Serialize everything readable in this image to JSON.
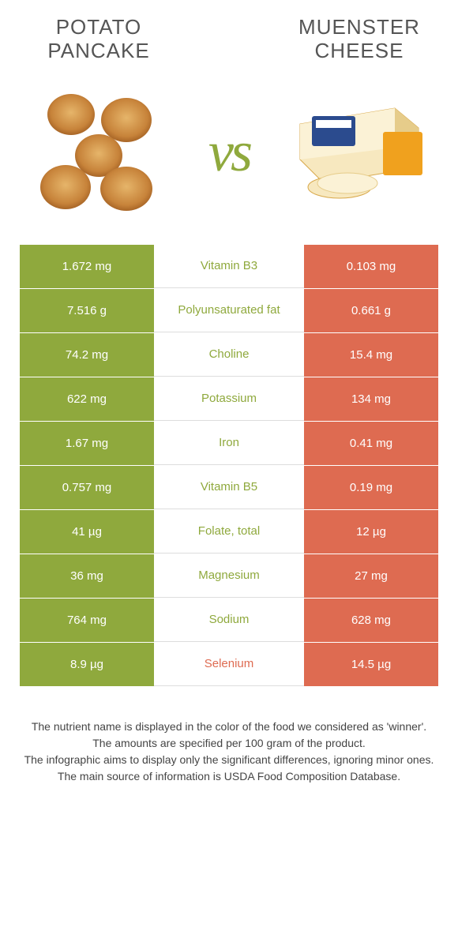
{
  "colors": {
    "left": "#8fa93d",
    "right": "#de6b51",
    "mid_bg": "#ffffff"
  },
  "foods": {
    "left": {
      "name": "POTATO PANCAKE"
    },
    "right": {
      "name": "MUENSTER CHEESE"
    }
  },
  "vs_label": "vs",
  "rows": [
    {
      "left": "1.672 mg",
      "mid": "Vitamin B3",
      "right": "0.103 mg",
      "winner": "left"
    },
    {
      "left": "7.516 g",
      "mid": "Polyunsaturated fat",
      "right": "0.661 g",
      "winner": "left"
    },
    {
      "left": "74.2 mg",
      "mid": "Choline",
      "right": "15.4 mg",
      "winner": "left"
    },
    {
      "left": "622 mg",
      "mid": "Potassium",
      "right": "134 mg",
      "winner": "left"
    },
    {
      "left": "1.67 mg",
      "mid": "Iron",
      "right": "0.41 mg",
      "winner": "left"
    },
    {
      "left": "0.757 mg",
      "mid": "Vitamin B5",
      "right": "0.19 mg",
      "winner": "left"
    },
    {
      "left": "41 µg",
      "mid": "Folate, total",
      "right": "12 µg",
      "winner": "left"
    },
    {
      "left": "36 mg",
      "mid": "Magnesium",
      "right": "27 mg",
      "winner": "left"
    },
    {
      "left": "764 mg",
      "mid": "Sodium",
      "right": "628 mg",
      "winner": "left"
    },
    {
      "left": "8.9 µg",
      "mid": "Selenium",
      "right": "14.5 µg",
      "winner": "right"
    }
  ],
  "footer_lines": [
    "The nutrient name is displayed in the color of the food we considered as 'winner'.",
    "The amounts are specified per 100 gram of the product.",
    "The infographic aims to display only the significant differences, ignoring minor ones.",
    "The main source of information is USDA Food Composition Database."
  ]
}
